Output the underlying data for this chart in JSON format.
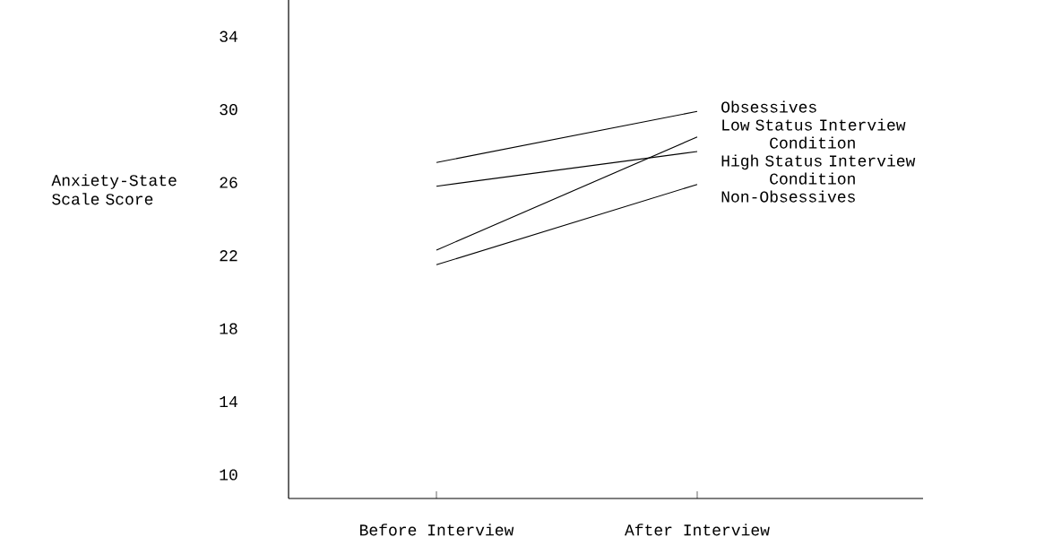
{
  "chart_data": {
    "type": "line",
    "ylabel": "Anxiety-State Scale Score",
    "categories": [
      "Before Interview",
      "After Interview"
    ],
    "ylim": [
      8.7,
      36
    ],
    "yticks": [
      10,
      14,
      18,
      22,
      26,
      30,
      34
    ],
    "marker": "none",
    "line_style": "solid",
    "series": [
      {
        "name": "Obsessives",
        "color": "#000000",
        "values": [
          27.1,
          29.9
        ]
      },
      {
        "name": "Low Status Interview Condition",
        "color": "#000000",
        "values": [
          22.3,
          28.5
        ]
      },
      {
        "name": "High Status Interview Condition",
        "color": "#000000",
        "values": [
          25.8,
          27.7
        ]
      },
      {
        "name": "Non-Obsessives",
        "color": "#000000",
        "values": [
          21.5,
          25.9
        ]
      }
    ]
  }
}
